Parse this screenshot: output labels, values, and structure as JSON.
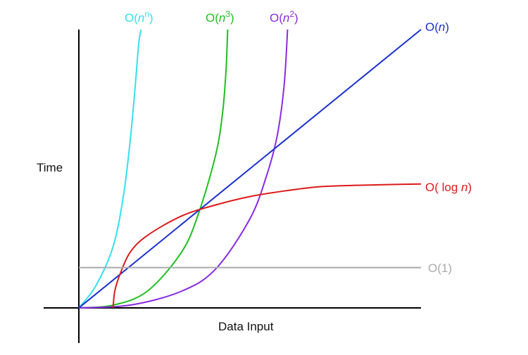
{
  "chart_data": {
    "type": "line",
    "xlabel": "Data Input",
    "ylabel": "Time",
    "series": [
      {
        "name": "O(n^n)",
        "label_parts": [
          "O(",
          "n",
          "n",
          ")"
        ],
        "color": "#33e0f0",
        "points": [
          [
            0,
            0
          ],
          [
            0.05,
            0.08
          ],
          [
            0.1,
            0.22
          ],
          [
            0.13,
            0.4
          ],
          [
            0.15,
            0.6
          ],
          [
            0.165,
            0.8
          ],
          [
            0.175,
            0.95
          ],
          [
            0.182,
            1.0
          ]
        ]
      },
      {
        "name": "O(n^3)",
        "label_parts": [
          "O(",
          "n",
          "3",
          ")"
        ],
        "color": "#1fbf1f",
        "points": [
          [
            0,
            0
          ],
          [
            0.1,
            0.01
          ],
          [
            0.2,
            0.06
          ],
          [
            0.3,
            0.2
          ],
          [
            0.35,
            0.34
          ],
          [
            0.4,
            0.55
          ],
          [
            0.42,
            0.7
          ],
          [
            0.43,
            0.85
          ],
          [
            0.435,
            1.0
          ]
        ]
      },
      {
        "name": "O(n^2)",
        "label_parts": [
          "O(",
          "n",
          "2",
          ")"
        ],
        "color": "#8a2be2",
        "points": [
          [
            0,
            0
          ],
          [
            0.15,
            0.01
          ],
          [
            0.3,
            0.06
          ],
          [
            0.4,
            0.14
          ],
          [
            0.5,
            0.32
          ],
          [
            0.55,
            0.48
          ],
          [
            0.58,
            0.62
          ],
          [
            0.6,
            0.8
          ],
          [
            0.61,
            1.0
          ]
        ]
      },
      {
        "name": "O(n)",
        "label_parts": [
          "O(",
          "n",
          "",
          ")"
        ],
        "color": "#1a30d0",
        "points": [
          [
            0,
            0
          ],
          [
            1.0,
            1.0
          ]
        ]
      },
      {
        "name": "O( log n)",
        "label_parts": [
          "O( log ",
          "n",
          "",
          ")"
        ],
        "color": "#dd1a1a",
        "points": [
          [
            0.1,
            0
          ],
          [
            0.105,
            0.06
          ],
          [
            0.12,
            0.12
          ],
          [
            0.15,
            0.2
          ],
          [
            0.2,
            0.26
          ],
          [
            0.3,
            0.33
          ],
          [
            0.4,
            0.37
          ],
          [
            0.5,
            0.4
          ],
          [
            0.6,
            0.42
          ],
          [
            0.7,
            0.435
          ],
          [
            0.8,
            0.44
          ],
          [
            0.9,
            0.443
          ],
          [
            1.0,
            0.445
          ]
        ]
      },
      {
        "name": "O(1)",
        "label_parts": [
          "O(1)",
          "",
          "",
          ""
        ],
        "color": "#aaaaaa",
        "points": [
          [
            0,
            0.145
          ],
          [
            1.0,
            0.145
          ]
        ]
      }
    ]
  }
}
